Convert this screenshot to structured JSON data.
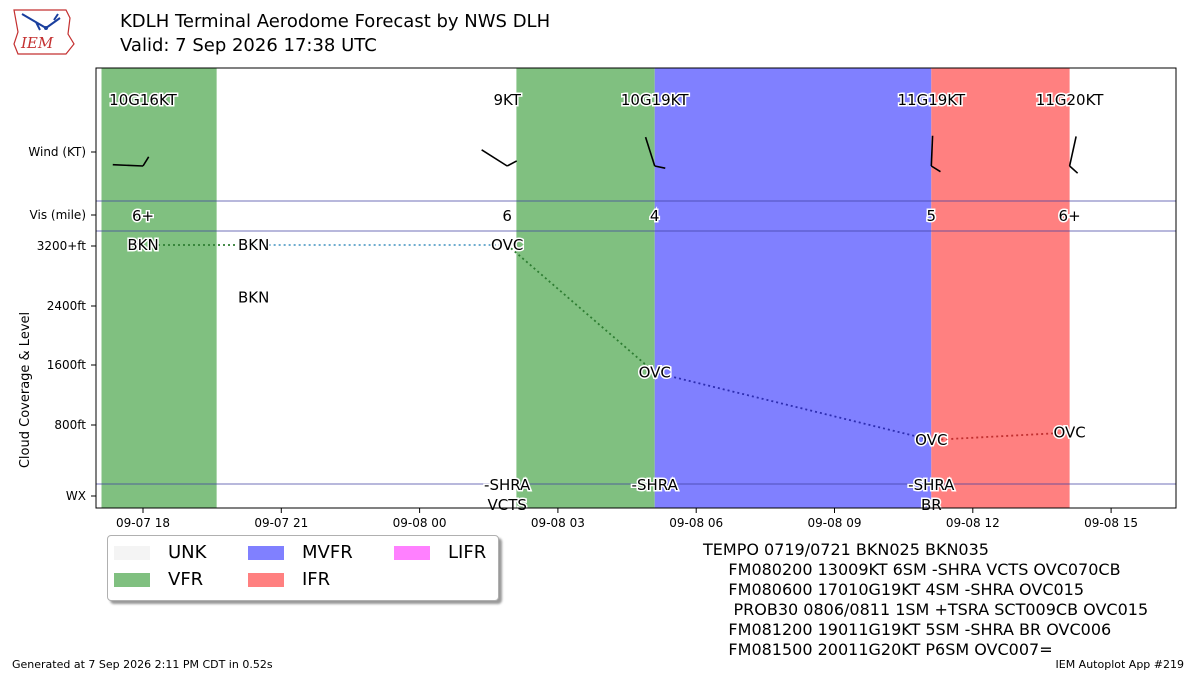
{
  "header": {
    "logo_text": "IEM",
    "title_line1": "KDLH Terminal Aerodome Forecast by NWS DLH",
    "title_line2": "Valid: 7 Sep 2026 17:38 UTC"
  },
  "chart_data": {
    "type": "timeline",
    "x_tick_labels": [
      "09-07 18",
      "09-07 21",
      "09-08 00",
      "09-08 03",
      "09-08 06",
      "09-08 09",
      "09-08 12",
      "09-08 15"
    ],
    "y_row_labels": [
      "Wind (KT)",
      "Vis (mile)",
      "3200+ft",
      "2400ft",
      "1600ft",
      "800ft",
      "WX"
    ],
    "ylabel": "Cloud Coverage & Level",
    "flight_category_bands": [
      {
        "start": 0.0,
        "end": 2.5,
        "category": "VFR"
      },
      {
        "start": 2.5,
        "end": 9.0,
        "category": "UNK"
      },
      {
        "start": 9.0,
        "end": 12.0,
        "category": "VFR"
      },
      {
        "start": 12.0,
        "end": 18.0,
        "category": "MVFR"
      },
      {
        "start": 18.0,
        "end": 21.0,
        "category": "IFR"
      }
    ],
    "category_colors": {
      "UNK": "#ffffff",
      "VFR": "#80c080",
      "MVFR": "#8080ff",
      "IFR": "#ff8080",
      "LIFR": "#ff80ff"
    },
    "forecasts": [
      {
        "t": 0.9,
        "wind_label": "10G16KT",
        "wind_dir": 100,
        "vis_label": "6+",
        "cloud_label": "BKN",
        "cloud_ft": 3200,
        "wx_labels": []
      },
      {
        "t": 3.3,
        "wind_label": "",
        "wind_dir": null,
        "vis_label": "",
        "cloud_label": "BKN",
        "cloud_ft": 3200,
        "wx_labels": []
      },
      {
        "t": 8.8,
        "wind_label": "9KT",
        "wind_dir": 130,
        "vis_label": "6",
        "cloud_label": "OVC",
        "cloud_ft": 3200,
        "wx_labels": [
          "-SHRA",
          "VCTS"
        ]
      },
      {
        "t": 12.0,
        "wind_label": "10G19KT",
        "wind_dir": 170,
        "vis_label": "4",
        "cloud_label": "OVC",
        "cloud_ft": 1500,
        "wx_labels": [
          "-SHRA"
        ]
      },
      {
        "t": 18.0,
        "wind_label": "11G19KT",
        "wind_dir": 190,
        "vis_label": "5",
        "cloud_label": "OVC",
        "cloud_ft": 600,
        "wx_labels": [
          "-SHRA",
          "BR"
        ]
      },
      {
        "t": 21.0,
        "wind_label": "11G20KT",
        "wind_dir": 200,
        "vis_label": "6+",
        "cloud_label": "OVC",
        "cloud_ft": 700,
        "wx_labels": []
      }
    ],
    "extra_cloud_label": {
      "t": 3.3,
      "label": "BKN",
      "cloud_ft": 2500
    },
    "legend": [
      "UNK",
      "VFR",
      "MVFR",
      "IFR",
      "LIFR"
    ]
  },
  "taf_text": [
    "TEMPO 0719/0721 BKN025 BKN035",
    "     FM080200 13009KT 6SM -SHRA VCTS OVC070CB",
    "     FM080600 17010G19KT 4SM -SHRA OVC015",
    "      PROB30 0806/0811 1SM +TSRA SCT009CB OVC015",
    "     FM081200 19011G19KT 5SM -SHRA BR OVC006",
    "     FM081500 20011G20KT P6SM OVC007="
  ],
  "footer": {
    "generated": "Generated at 7 Sep 2026 2:11 PM CDT in 0.52s",
    "app": "IEM Autoplot App #219"
  }
}
